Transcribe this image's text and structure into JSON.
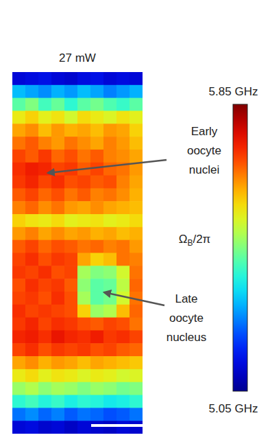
{
  "chart_data": {
    "type": "heatmap",
    "title": "27 mW",
    "tick_labels": false,
    "z": [
      [
        5.12,
        5.13,
        5.14,
        5.12,
        5.11,
        5.13,
        5.14,
        5.12,
        5.13,
        5.12
      ],
      [
        5.3,
        5.28,
        5.26,
        5.29,
        5.27,
        5.3,
        5.28,
        5.25,
        5.27,
        5.29
      ],
      [
        5.42,
        5.45,
        5.4,
        5.43,
        5.38,
        5.42,
        5.44,
        5.41,
        5.39,
        5.42
      ],
      [
        5.55,
        5.58,
        5.54,
        5.56,
        5.52,
        5.57,
        5.55,
        5.53,
        5.56,
        5.54
      ],
      [
        5.62,
        5.64,
        5.6,
        5.63,
        5.61,
        5.62,
        5.6,
        5.63,
        5.62,
        5.58
      ],
      [
        5.66,
        5.68,
        5.65,
        5.63,
        5.66,
        5.64,
        5.62,
        5.65,
        5.63,
        5.6
      ],
      [
        5.7,
        5.68,
        5.71,
        5.67,
        5.69,
        5.66,
        5.68,
        5.65,
        5.64,
        5.62
      ],
      [
        5.72,
        5.74,
        5.73,
        5.7,
        5.71,
        5.68,
        5.7,
        5.67,
        5.66,
        5.63
      ],
      [
        5.71,
        5.73,
        5.7,
        5.72,
        5.69,
        5.7,
        5.68,
        5.69,
        5.65,
        5.62
      ],
      [
        5.68,
        5.7,
        5.67,
        5.69,
        5.66,
        5.68,
        5.65,
        5.66,
        5.64,
        5.61
      ],
      [
        5.65,
        5.67,
        5.64,
        5.66,
        5.63,
        5.62,
        5.64,
        5.62,
        5.61,
        5.6
      ],
      [
        5.58,
        5.56,
        5.55,
        5.57,
        5.54,
        5.55,
        5.56,
        5.54,
        5.55,
        5.57
      ],
      [
        5.63,
        5.65,
        5.62,
        5.64,
        5.62,
        5.63,
        5.61,
        5.62,
        5.6,
        5.61
      ],
      [
        5.68,
        5.7,
        5.67,
        5.69,
        5.68,
        5.66,
        5.67,
        5.65,
        5.66,
        5.63
      ],
      [
        5.7,
        5.72,
        5.69,
        5.71,
        5.7,
        5.62,
        5.58,
        5.6,
        5.66,
        5.65
      ],
      [
        5.71,
        5.7,
        5.72,
        5.69,
        5.7,
        5.48,
        5.45,
        5.46,
        5.52,
        5.66
      ],
      [
        5.69,
        5.72,
        5.7,
        5.71,
        5.68,
        5.46,
        5.42,
        5.43,
        5.5,
        5.67
      ],
      [
        5.7,
        5.71,
        5.69,
        5.72,
        5.69,
        5.48,
        5.42,
        5.44,
        5.52,
        5.66
      ],
      [
        5.72,
        5.7,
        5.71,
        5.7,
        5.69,
        5.58,
        5.47,
        5.49,
        5.6,
        5.67
      ],
      [
        5.71,
        5.73,
        5.7,
        5.72,
        5.71,
        5.69,
        5.68,
        5.7,
        5.69,
        5.66
      ],
      [
        5.73,
        5.74,
        5.72,
        5.75,
        5.73,
        5.72,
        5.74,
        5.71,
        5.72,
        5.7
      ],
      [
        5.7,
        5.72,
        5.69,
        5.71,
        5.7,
        5.71,
        5.69,
        5.7,
        5.68,
        5.67
      ],
      [
        5.62,
        5.64,
        5.61,
        5.63,
        5.62,
        5.6,
        5.62,
        5.61,
        5.6,
        5.59
      ],
      [
        5.55,
        5.57,
        5.54,
        5.56,
        5.55,
        5.53,
        5.55,
        5.54,
        5.52,
        5.53
      ],
      [
        5.47,
        5.49,
        5.46,
        5.48,
        5.47,
        5.45,
        5.47,
        5.46,
        5.44,
        5.45
      ],
      [
        5.38,
        5.4,
        5.37,
        5.39,
        5.36,
        5.38,
        5.37,
        5.35,
        5.36,
        5.38
      ],
      [
        5.24,
        5.26,
        5.23,
        5.25,
        5.22,
        5.24,
        5.23,
        5.21,
        5.22,
        5.24
      ],
      [
        5.12,
        5.13,
        5.11,
        5.12,
        5.1,
        5.12,
        5.11,
        5.1,
        5.12,
        5.11
      ]
    ],
    "colorbar": {
      "range": [
        5.05,
        5.85
      ],
      "ticks": [
        {
          "value": 5.85,
          "label": "5.85 GHz"
        },
        {
          "value": 5.05,
          "label": "5.05 GHz"
        }
      ],
      "label": {
        "symbol": "Ω",
        "subscript": "B",
        "rest": "/2π"
      }
    },
    "annotations": [
      {
        "lines": [
          "Early",
          "oocyte",
          "nuclei"
        ]
      },
      {
        "lines": [
          "Late",
          "oocyte",
          "nucleus"
        ]
      }
    ]
  }
}
